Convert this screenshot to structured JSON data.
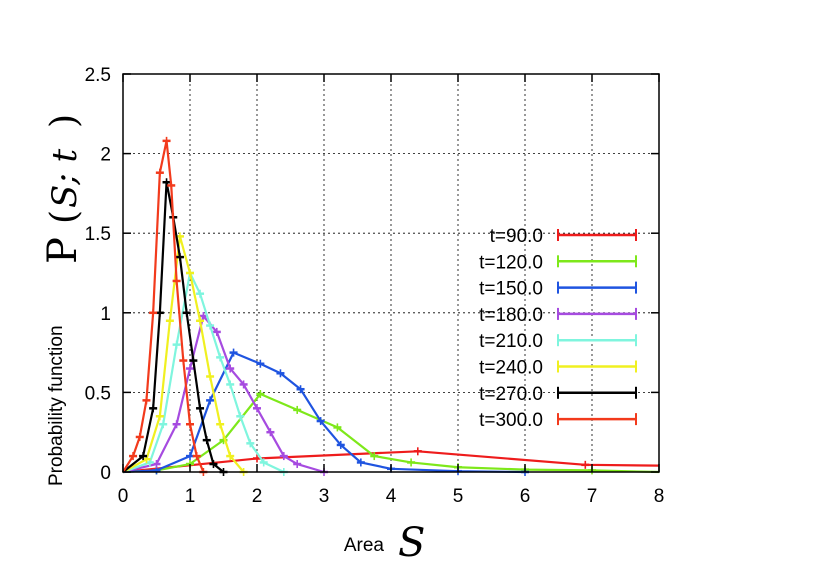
{
  "chart_data": {
    "type": "line",
    "title": "",
    "xlabel": {
      "word": "Area",
      "symbol": "S"
    },
    "ylabel": {
      "word": "Probability function",
      "symbol_prefix": "P",
      "symbol_open": "(",
      "symbol_mid": "S; t",
      "symbol_close": ")"
    },
    "xlim": [
      0,
      8
    ],
    "ylim": [
      0,
      2.5
    ],
    "xticks": [
      0,
      1,
      2,
      3,
      4,
      5,
      6,
      7,
      8
    ],
    "yticks": [
      0,
      0.5,
      1,
      1.5,
      2,
      2.5
    ],
    "xtick_labels": [
      "0",
      "1",
      "2",
      "3",
      "4",
      "5",
      "6",
      "7",
      "8"
    ],
    "ytick_labels": [
      "0",
      "0.5",
      "1",
      "1.5",
      "2",
      "2.5"
    ],
    "grid": true,
    "legend_position": "right",
    "error_bars": true,
    "series": [
      {
        "name": "t=90.0",
        "color": "#ee1c1c",
        "x": [
          0.0,
          2.0,
          4.4,
          6.9,
          8.0
        ],
        "y": [
          0.0,
          0.085,
          0.13,
          0.045,
          0.04
        ]
      },
      {
        "name": "t=120.0",
        "color": "#7ee81a",
        "x": [
          0.0,
          0.5,
          1.0,
          1.5,
          2.05,
          2.6,
          3.2,
          3.75,
          4.3,
          5.0,
          6.0,
          7.0,
          8.0
        ],
        "y": [
          0.0,
          0.01,
          0.05,
          0.2,
          0.49,
          0.39,
          0.28,
          0.1,
          0.06,
          0.03,
          0.015,
          0.01,
          0.0
        ]
      },
      {
        "name": "t=150.0",
        "color": "#1f54e0",
        "x": [
          0.0,
          0.5,
          1.0,
          1.3,
          1.65,
          2.05,
          2.35,
          2.65,
          2.95,
          3.25,
          3.55,
          4.0,
          5.0,
          6.0
        ],
        "y": [
          0.0,
          0.01,
          0.1,
          0.45,
          0.75,
          0.68,
          0.62,
          0.52,
          0.32,
          0.17,
          0.06,
          0.02,
          0.005,
          0.0
        ]
      },
      {
        "name": "t=180.0",
        "color": "#a64be0",
        "x": [
          0.0,
          0.5,
          0.8,
          1.0,
          1.2,
          1.4,
          1.6,
          1.8,
          2.0,
          2.2,
          2.4,
          2.6,
          3.0
        ],
        "y": [
          0.0,
          0.05,
          0.3,
          0.65,
          0.98,
          0.88,
          0.65,
          0.55,
          0.4,
          0.25,
          0.1,
          0.05,
          0.0
        ]
      },
      {
        "name": "t=210.0",
        "color": "#7ff5de",
        "x": [
          0.0,
          0.4,
          0.6,
          0.8,
          1.0,
          1.15,
          1.3,
          1.45,
          1.6,
          1.75,
          1.9,
          2.1,
          2.4
        ],
        "y": [
          0.0,
          0.06,
          0.3,
          0.8,
          1.25,
          1.12,
          0.92,
          0.72,
          0.55,
          0.35,
          0.18,
          0.06,
          0.0
        ]
      },
      {
        "name": "t=240.0",
        "color": "#f0f020",
        "x": [
          0.0,
          0.35,
          0.55,
          0.7,
          0.85,
          1.0,
          1.15,
          1.3,
          1.45,
          1.6,
          1.8
        ],
        "y": [
          0.0,
          0.08,
          0.35,
          0.95,
          1.48,
          1.25,
          0.95,
          0.6,
          0.3,
          0.1,
          0.0
        ]
      },
      {
        "name": "t=270.0",
        "color": "#000000",
        "x": [
          0.0,
          0.3,
          0.45,
          0.55,
          0.65,
          0.75,
          0.85,
          0.95,
          1.05,
          1.15,
          1.25,
          1.35,
          1.5
        ],
        "y": [
          0.0,
          0.1,
          0.4,
          1.0,
          1.82,
          1.6,
          1.35,
          1.0,
          0.7,
          0.4,
          0.2,
          0.05,
          0.0
        ]
      },
      {
        "name": "t=300.0",
        "color": "#f23a1c",
        "x": [
          0.0,
          0.15,
          0.25,
          0.35,
          0.45,
          0.55,
          0.65,
          0.72,
          0.8,
          0.9,
          1.0,
          1.1,
          1.2
        ],
        "y": [
          0.0,
          0.1,
          0.22,
          0.45,
          1.0,
          1.88,
          2.08,
          1.8,
          1.2,
          0.7,
          0.3,
          0.1,
          0.0
        ]
      }
    ]
  }
}
